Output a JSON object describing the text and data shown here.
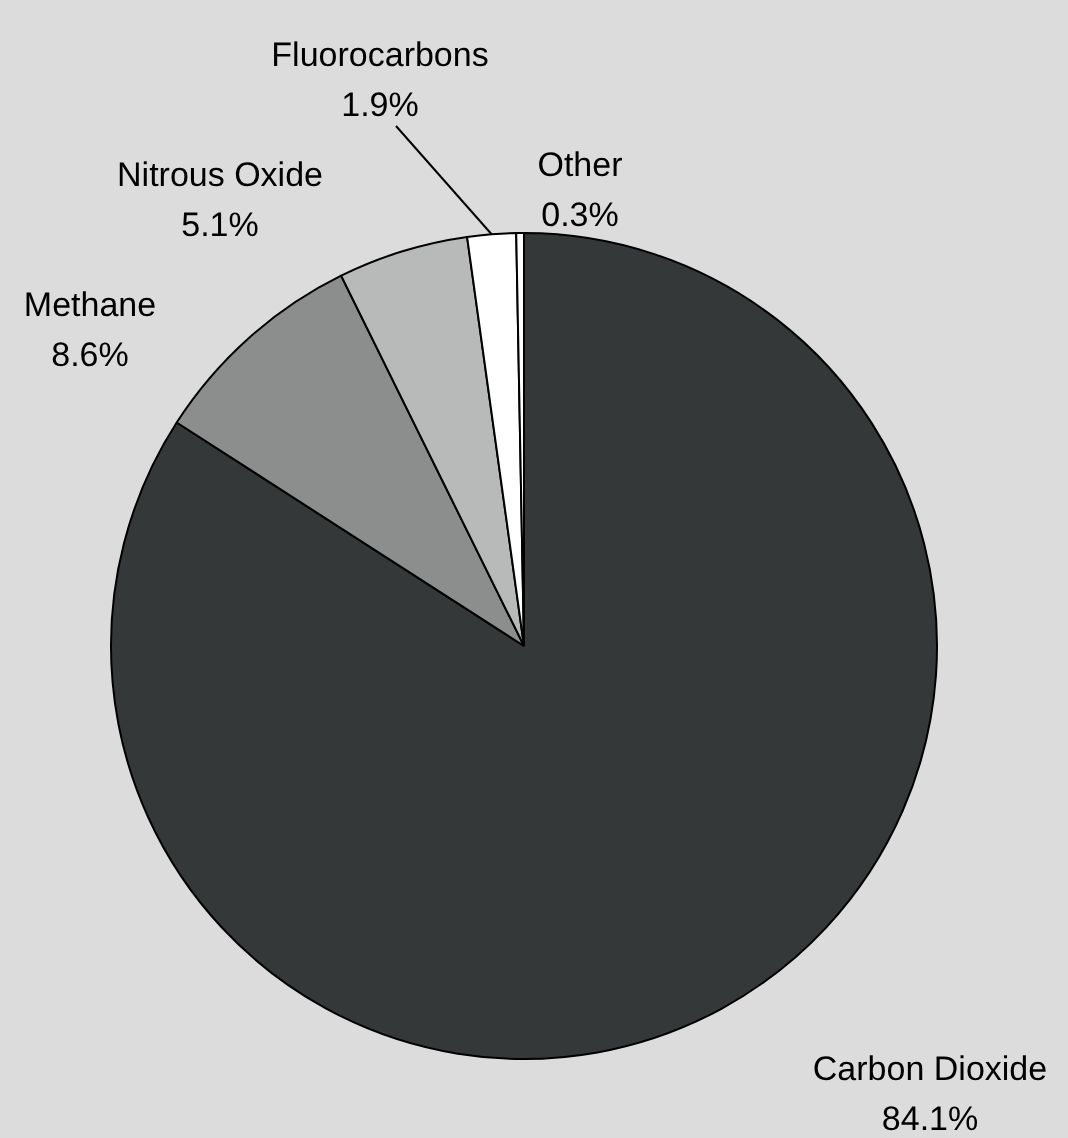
{
  "chart_data": {
    "type": "pie",
    "categories": [
      "Carbon Dioxide",
      "Methane",
      "Nitrous Oxide",
      "Fluorocarbons",
      "Other"
    ],
    "values": [
      84.1,
      8.6,
      5.1,
      1.9,
      0.3
    ],
    "value_labels": [
      "84.1%",
      "8.6%",
      "5.1%",
      "1.9%",
      "0.3%"
    ],
    "colors": [
      "#353839",
      "#8c8e8e",
      "#b8baba",
      "#ffffff",
      "#ffffff"
    ],
    "legend": false
  }
}
